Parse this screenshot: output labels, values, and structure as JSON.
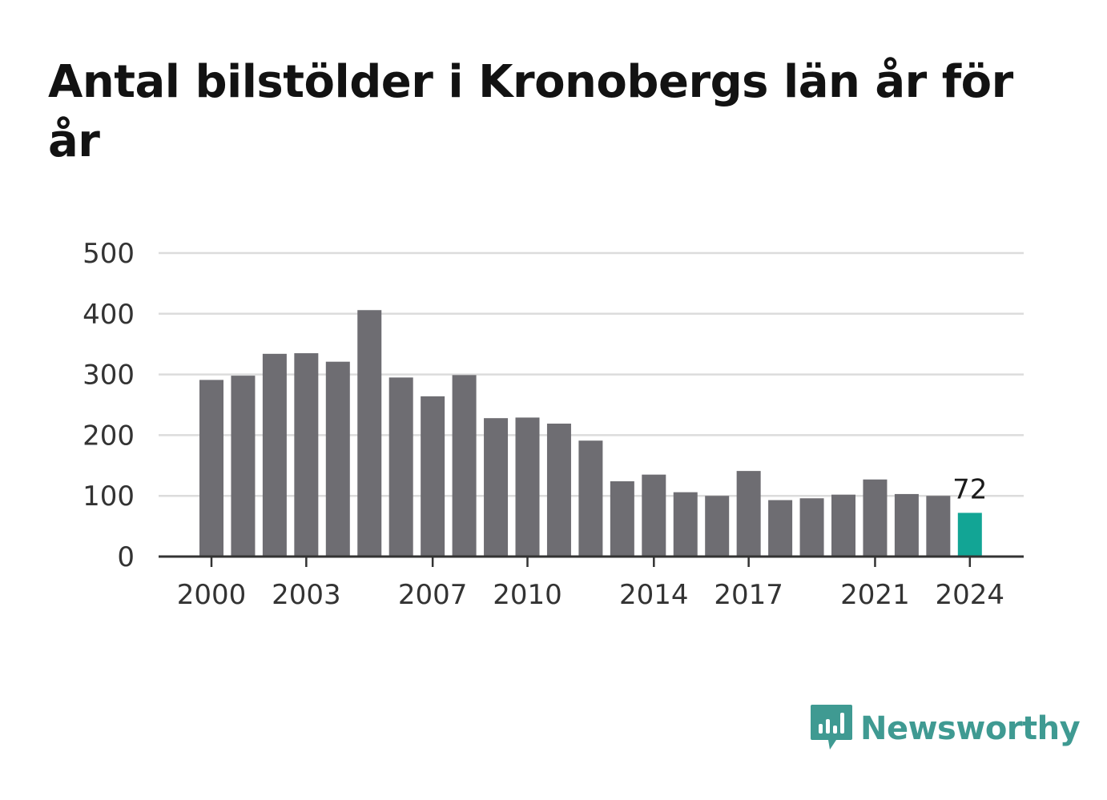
{
  "chart_data": {
    "type": "bar",
    "title": "Antal bilstölder i Kronobergs län år för år",
    "xlabel": "",
    "ylabel": "",
    "ylim": [
      0,
      500
    ],
    "yticks": [
      0,
      100,
      200,
      300,
      400,
      500
    ],
    "xticks": [
      2000,
      2003,
      2007,
      2010,
      2014,
      2017,
      2021,
      2024
    ],
    "grid": true,
    "legend": "none",
    "colors": {
      "bar": "#6e6d72",
      "highlight": "#12a595",
      "grid": "#dcdcdc",
      "axis": "#333333"
    },
    "categories": [
      2000,
      2001,
      2002,
      2003,
      2004,
      2005,
      2006,
      2007,
      2008,
      2009,
      2010,
      2011,
      2012,
      2013,
      2014,
      2015,
      2016,
      2017,
      2018,
      2019,
      2020,
      2021,
      2022,
      2023,
      2024
    ],
    "values": [
      291,
      298,
      334,
      335,
      321,
      406,
      295,
      264,
      299,
      228,
      229,
      219,
      191,
      124,
      135,
      106,
      100,
      141,
      93,
      96,
      102,
      127,
      103,
      100,
      72
    ],
    "highlight_index": 24,
    "annotations": [
      {
        "category": 2024,
        "text": "72"
      }
    ]
  },
  "logo": {
    "text": "Newsworthy",
    "icon": "newsworthy-chart-bubble-icon"
  }
}
